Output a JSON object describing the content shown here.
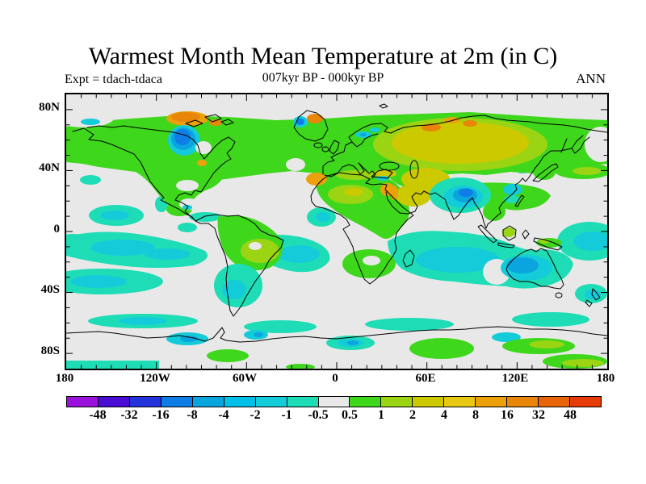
{
  "title": "Warmest Month Mean Temperature at 2m (in C)",
  "subtitle": {
    "left": "Expt = tdach-tdaca",
    "center": "007kyr BP - 000kyr BP",
    "right": "ANN"
  },
  "y_axis": {
    "labels": [
      "80N",
      "40N",
      "0",
      "40S",
      "80S"
    ]
  },
  "x_axis": {
    "labels": [
      "180",
      "120W",
      "60W",
      "0",
      "60E",
      "120E",
      "180"
    ]
  },
  "colorbar": {
    "labels": [
      "-48",
      "-32",
      "-16",
      "-8",
      "-4",
      "-2",
      "-1",
      "-0.5",
      "0.5",
      "1",
      "2",
      "4",
      "8",
      "16",
      "32",
      "48"
    ],
    "colors": [
      "#9911DB",
      "#4A0BD3",
      "#2433DC",
      "#0E7EE6",
      "#0AA5DE",
      "#00C0E6",
      "#14CBD9",
      "#1EDDB6",
      "#E8E8E8",
      "#3FD71C",
      "#9BD413",
      "#CCC900",
      "#E8C813",
      "#ECA00A",
      "#E8860A",
      "#E86409",
      "#E63C09"
    ]
  },
  "map": {
    "colors": {
      "background": "#E8E8E8",
      "green": "#3FD71C",
      "yellow_green": "#9BD413",
      "olive": "#CCC900",
      "yellow": "#E8C813",
      "yellow_orange": "#ECA00A",
      "orange": "#E8860A",
      "turquoise": "#1EDDB6",
      "cyan": "#14CBD9",
      "light_blue": "#0AA5DE",
      "blue": "#0E7EE6",
      "coastline": "#000000"
    }
  },
  "chart_data": {
    "type": "heatmap",
    "title": "Warmest Month Mean Temperature at 2m (in C)",
    "experiment": "tdach-tdaca",
    "period": "007kyr BP - 000kyr BP",
    "season": "ANN",
    "projection": "equirectangular world map",
    "lon_range": [
      -180,
      180
    ],
    "lat_range": [
      -90,
      90
    ],
    "lon_ticks_labeled": [
      "180",
      "120W",
      "60W",
      "0",
      "60E",
      "120E",
      "180"
    ],
    "lat_ticks_labeled": [
      "80N",
      "40N",
      "0",
      "40S",
      "80S"
    ],
    "units": "C",
    "contour_levels": [
      -48,
      -32,
      -16,
      -8,
      -4,
      -2,
      -1,
      -0.5,
      0.5,
      1,
      2,
      4,
      8,
      16,
      32,
      48
    ],
    "regions": [
      {
        "area": "Northern mid/high-latitude land and adjacent oceans (North America, Europe, Siberia)",
        "anomaly_C": "+0.5 to +2"
      },
      {
        "area": "Central Asia / Siberian interior / Middle East",
        "anomaly_C": "+2 to +4"
      },
      {
        "area": "Canadian Arctic islands, NE Greenland, scattered Siberian Arctic coast",
        "anomaly_C": "+4 to +16"
      },
      {
        "area": "West of Hudson Bay / Foxe Basin",
        "anomaly_C": "-2 to -8"
      },
      {
        "area": "India, Pakistan and Bay of Bengal",
        "anomaly_C": "-1 to -8"
      },
      {
        "area": "Central-western Australia",
        "anomaly_C": "-1 to -4"
      },
      {
        "area": "Tropical and subtropical southern oceans (S Pacific, S Atlantic, Indian Ocean)",
        "anomaly_C": "-0.5 to -2"
      },
      {
        "area": "Mid-latitude oceans",
        "anomaly_C": "-0.5 to +0.5 (near zero)"
      },
      {
        "area": "Brazilian interior",
        "anomaly_C": "+1 to +2"
      },
      {
        "area": "Southern Africa interior",
        "anomaly_C": "+0.5 to +1"
      },
      {
        "area": "Antarctic interior patches",
        "anomaly_C": "+0.5 to +2"
      }
    ]
  }
}
